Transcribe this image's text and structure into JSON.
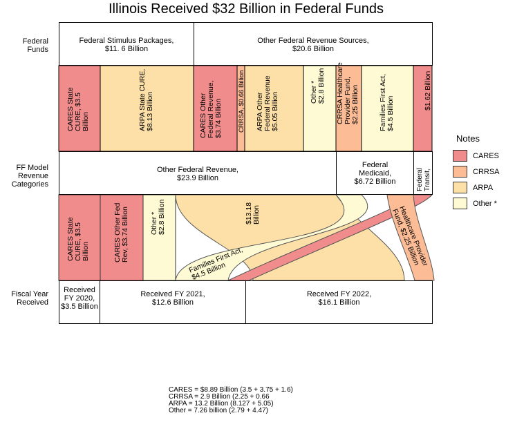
{
  "title": "Illinois Received $32 Billion in Federal Funds",
  "row_labels": {
    "federal_funds": [
      "Federal",
      "Funds"
    ],
    "model_categories": [
      "FF Model",
      "Revenue",
      "Categories"
    ],
    "fiscal_year": [
      "Fiscal Year",
      "Received"
    ]
  },
  "federal_funds": [
    {
      "lines": [
        "Federal Stimulus Packages,",
        "$11. 6 Billion"
      ]
    },
    {
      "lines": [
        "Other Federal Revenue Sources,",
        "$20.6 Billion"
      ]
    }
  ],
  "source_bands": [
    {
      "lines": [
        "CARES State",
        "CURE, $3.5",
        "Billion"
      ],
      "program": "CARES"
    },
    {
      "lines": [
        "ARPA State CURE,",
        "$8.13 Billion"
      ],
      "program": "ARPA"
    },
    {
      "lines": [
        "CARES Other",
        "Federal Revenue,",
        "$3.74 Billion"
      ],
      "program": "CARES"
    },
    {
      "lines": [
        "CRRSA, $0.66 Billion"
      ],
      "program": "CRRSA"
    },
    {
      "lines": [
        "ARPA Other",
        "Federal Revenue",
        "$5.05 Billion"
      ],
      "program": "ARPA"
    },
    {
      "lines": [
        "Other *",
        "$2.8 Billion"
      ],
      "program": "Other *"
    },
    {
      "lines": [
        "CRRSA Healthcare",
        "Provider Fund,",
        "$2.25 Billion"
      ],
      "program": "CRRSA"
    },
    {
      "lines": [
        "Families First Act,",
        "$4.5 Billion"
      ],
      "program": "Other *"
    },
    {
      "lines": [
        "$1.62 Billion"
      ],
      "program": "CARES"
    }
  ],
  "model_categories": [
    {
      "lines": [
        "Other Federal Revenue,",
        "$23.9 Billion"
      ]
    },
    {
      "lines": [
        "Federal",
        "Medicaid,",
        "$6.72 Billion"
      ]
    },
    {
      "lines": [
        "Federal",
        "Transit,"
      ]
    }
  ],
  "flow_labels": [
    {
      "lines": [
        "CARES State",
        "CURE, $3.5",
        "Billion"
      ]
    },
    {
      "lines": [
        "CARES Other Fed",
        "Rev, $3.74 Billion"
      ]
    },
    {
      "lines": [
        "Other *",
        "$2.8 Billion"
      ]
    },
    {
      "lines": [
        "$13.18",
        "Billion"
      ]
    },
    {
      "lines": [
        "Families First Act,",
        "$4.5 Billion"
      ]
    },
    {
      "lines": [
        "Healthcare Provider",
        "Fund, $2.25 Billion"
      ]
    }
  ],
  "fiscal_years": [
    {
      "lines": [
        "Received",
        "FY 2020,",
        "$3.5 Billion"
      ]
    },
    {
      "lines": [
        "Received FY 2021,",
        "$12.6 Billion"
      ]
    },
    {
      "lines": [
        "Received FY 2022,",
        "$16.1 Billion"
      ]
    }
  ],
  "legend": {
    "title": "Notes",
    "items": [
      {
        "label": "CARES",
        "color": "#f08c8c"
      },
      {
        "label": "CRRSA",
        "color": "#fcbc96"
      },
      {
        "label": "ARPA",
        "color": "#fde0a8"
      },
      {
        "label": "Other *",
        "color": "#fefbd4"
      }
    ]
  },
  "notes": [
    "CARES = $8.89 Billion (3.5 + 3.75 + 1.6)",
    "CRRSA = 2.9 Billion (2.25 + 0.66",
    "ARPA = 13.2 Billion (8.127 + 5.05)",
    "Other = 7.26 billion (2.79 + 4.47)"
  ]
}
